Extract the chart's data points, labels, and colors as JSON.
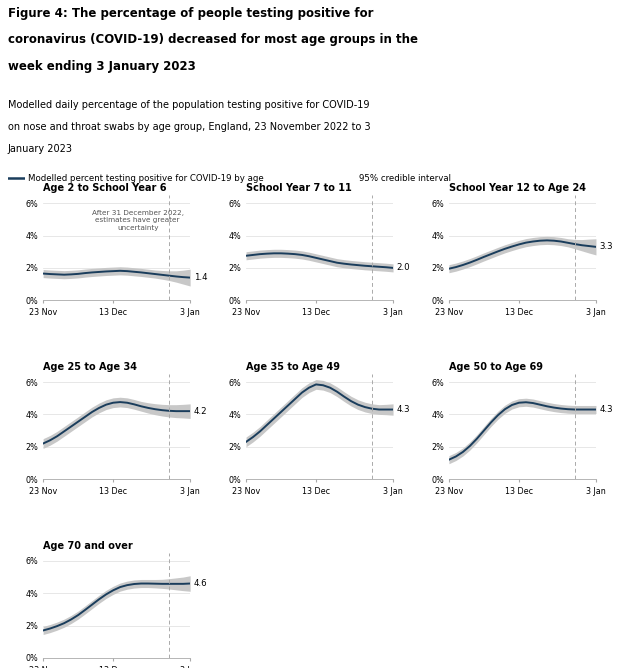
{
  "title_lines": [
    "Figure 4: The percentage of people testing positive for",
    "coronavirus (COVID-19) decreased for most age groups in the",
    "week ending 3 January 2023"
  ],
  "subtitle_lines": [
    "Modelled daily percentage of the population testing positive for COVID-19",
    "on nose and throat swabs by age group, England, 23 November 2022 to 3",
    "January 2023"
  ],
  "legend_line": "Modelled percent testing positive for COVID-19 by age",
  "legend_band": "95% credible interval",
  "line_color": "#1a3d5c",
  "band_color": "#c8c8c8",
  "annotation_text": "After 31 December 2022,\nestimates have greater\nuncertainty",
  "subplots": [
    {
      "title": "Age 2 to School Year 6",
      "end_value": "1.4",
      "y_mean": [
        1.65,
        1.62,
        1.6,
        1.58,
        1.6,
        1.63,
        1.68,
        1.72,
        1.75,
        1.78,
        1.8,
        1.82,
        1.8,
        1.76,
        1.72,
        1.67,
        1.62,
        1.57,
        1.52,
        1.47,
        1.43,
        1.4
      ],
      "y_low": [
        1.4,
        1.37,
        1.35,
        1.33,
        1.35,
        1.38,
        1.43,
        1.47,
        1.5,
        1.53,
        1.55,
        1.57,
        1.55,
        1.51,
        1.47,
        1.42,
        1.37,
        1.3,
        1.22,
        1.12,
        1.0,
        0.88
      ],
      "y_high": [
        1.9,
        1.87,
        1.85,
        1.83,
        1.85,
        1.88,
        1.93,
        1.97,
        2.0,
        2.03,
        2.05,
        2.07,
        2.05,
        2.01,
        1.97,
        1.92,
        1.87,
        1.84,
        1.82,
        1.82,
        1.86,
        1.92
      ],
      "show_annotation": true
    },
    {
      "title": "School Year 7 to 11",
      "end_value": "2.0",
      "y_mean": [
        2.75,
        2.8,
        2.85,
        2.88,
        2.9,
        2.9,
        2.88,
        2.85,
        2.8,
        2.72,
        2.62,
        2.52,
        2.42,
        2.32,
        2.26,
        2.21,
        2.17,
        2.13,
        2.1,
        2.07,
        2.04,
        2.0
      ],
      "y_low": [
        2.5,
        2.55,
        2.6,
        2.63,
        2.65,
        2.65,
        2.63,
        2.6,
        2.55,
        2.47,
        2.37,
        2.27,
        2.17,
        2.07,
        2.01,
        1.96,
        1.92,
        1.88,
        1.85,
        1.82,
        1.79,
        1.75
      ],
      "y_high": [
        3.0,
        3.05,
        3.1,
        3.13,
        3.15,
        3.15,
        3.13,
        3.1,
        3.05,
        2.97,
        2.87,
        2.77,
        2.67,
        2.57,
        2.51,
        2.46,
        2.42,
        2.38,
        2.35,
        2.32,
        2.29,
        2.25
      ],
      "show_annotation": false
    },
    {
      "title": "School Year 12 to Age 24",
      "end_value": "3.3",
      "y_mean": [
        1.95,
        2.05,
        2.18,
        2.33,
        2.5,
        2.68,
        2.85,
        3.02,
        3.18,
        3.32,
        3.45,
        3.56,
        3.63,
        3.68,
        3.7,
        3.68,
        3.63,
        3.55,
        3.47,
        3.4,
        3.35,
        3.3
      ],
      "y_low": [
        1.7,
        1.8,
        1.93,
        2.08,
        2.25,
        2.43,
        2.6,
        2.77,
        2.93,
        3.07,
        3.2,
        3.31,
        3.38,
        3.43,
        3.45,
        3.43,
        3.38,
        3.3,
        3.18,
        3.05,
        2.92,
        2.8
      ],
      "y_high": [
        2.2,
        2.3,
        2.43,
        2.58,
        2.75,
        2.93,
        3.1,
        3.27,
        3.43,
        3.57,
        3.7,
        3.81,
        3.88,
        3.93,
        3.95,
        3.93,
        3.88,
        3.8,
        3.76,
        3.75,
        3.78,
        3.8
      ],
      "show_annotation": false
    },
    {
      "title": "Age 25 to Age 34",
      "end_value": "4.2",
      "y_mean": [
        2.2,
        2.4,
        2.65,
        2.95,
        3.25,
        3.55,
        3.85,
        4.15,
        4.4,
        4.6,
        4.72,
        4.76,
        4.72,
        4.62,
        4.5,
        4.4,
        4.32,
        4.26,
        4.22,
        4.2,
        4.2,
        4.2
      ],
      "y_low": [
        1.9,
        2.1,
        2.35,
        2.65,
        2.95,
        3.25,
        3.55,
        3.85,
        4.1,
        4.3,
        4.42,
        4.46,
        4.42,
        4.32,
        4.2,
        4.08,
        3.98,
        3.9,
        3.84,
        3.8,
        3.78,
        3.75
      ],
      "y_high": [
        2.5,
        2.7,
        2.95,
        3.25,
        3.55,
        3.85,
        4.15,
        4.45,
        4.7,
        4.9,
        5.02,
        5.06,
        5.02,
        4.92,
        4.8,
        4.72,
        4.66,
        4.62,
        4.6,
        4.6,
        4.62,
        4.65
      ],
      "show_annotation": false
    },
    {
      "title": "Age 35 to Age 49",
      "end_value": "4.3",
      "y_mean": [
        2.3,
        2.6,
        2.95,
        3.35,
        3.75,
        4.15,
        4.55,
        4.95,
        5.35,
        5.65,
        5.85,
        5.8,
        5.65,
        5.4,
        5.1,
        4.82,
        4.6,
        4.45,
        4.35,
        4.3,
        4.3,
        4.3
      ],
      "y_low": [
        2.0,
        2.3,
        2.65,
        3.05,
        3.45,
        3.85,
        4.25,
        4.65,
        5.05,
        5.35,
        5.55,
        5.5,
        5.35,
        5.1,
        4.8,
        4.52,
        4.3,
        4.15,
        4.05,
        4.0,
        3.98,
        3.95
      ],
      "y_high": [
        2.6,
        2.9,
        3.25,
        3.65,
        4.05,
        4.45,
        4.85,
        5.25,
        5.65,
        5.95,
        6.15,
        6.1,
        5.95,
        5.7,
        5.4,
        5.12,
        4.9,
        4.75,
        4.65,
        4.6,
        4.62,
        4.65
      ],
      "show_annotation": false
    },
    {
      "title": "Age 50 to Age 69",
      "end_value": "4.3",
      "y_mean": [
        1.2,
        1.4,
        1.68,
        2.05,
        2.5,
        3.0,
        3.5,
        3.95,
        4.32,
        4.58,
        4.72,
        4.75,
        4.7,
        4.6,
        4.5,
        4.42,
        4.36,
        4.32,
        4.3,
        4.3,
        4.3,
        4.3
      ],
      "y_low": [
        0.95,
        1.15,
        1.43,
        1.8,
        2.25,
        2.75,
        3.25,
        3.7,
        4.07,
        4.33,
        4.47,
        4.5,
        4.45,
        4.35,
        4.25,
        4.17,
        4.11,
        4.07,
        4.05,
        4.05,
        4.05,
        4.05
      ],
      "y_high": [
        1.45,
        1.65,
        1.93,
        2.3,
        2.75,
        3.25,
        3.75,
        4.2,
        4.57,
        4.83,
        4.97,
        5.0,
        4.95,
        4.85,
        4.75,
        4.67,
        4.61,
        4.57,
        4.55,
        4.55,
        4.55,
        4.55
      ],
      "show_annotation": false
    },
    {
      "title": "Age 70 and over",
      "end_value": "4.6",
      "y_mean": [
        1.7,
        1.82,
        1.97,
        2.15,
        2.38,
        2.65,
        2.97,
        3.3,
        3.63,
        3.93,
        4.18,
        4.38,
        4.5,
        4.57,
        4.6,
        4.6,
        4.59,
        4.58,
        4.58,
        4.58,
        4.58,
        4.6
      ],
      "y_low": [
        1.45,
        1.57,
        1.72,
        1.9,
        2.13,
        2.4,
        2.72,
        3.05,
        3.38,
        3.68,
        3.93,
        4.13,
        4.25,
        4.32,
        4.35,
        4.35,
        4.33,
        4.3,
        4.26,
        4.21,
        4.16,
        4.12
      ],
      "y_high": [
        1.95,
        2.07,
        2.22,
        2.4,
        2.63,
        2.9,
        3.22,
        3.55,
        3.88,
        4.18,
        4.43,
        4.63,
        4.75,
        4.82,
        4.85,
        4.85,
        4.85,
        4.86,
        4.9,
        4.95,
        5.0,
        5.08
      ],
      "show_annotation": false
    }
  ],
  "x_ticks": [
    0,
    10,
    21
  ],
  "x_tick_labels": [
    "23 Nov",
    "13 Dec",
    "3 Jan"
  ],
  "dashed_line_x": 18,
  "ylim": [
    0,
    6.5
  ],
  "yticks": [
    0,
    2,
    4,
    6
  ],
  "ytick_labels": [
    "0%",
    "2%",
    "4%",
    "6%"
  ]
}
